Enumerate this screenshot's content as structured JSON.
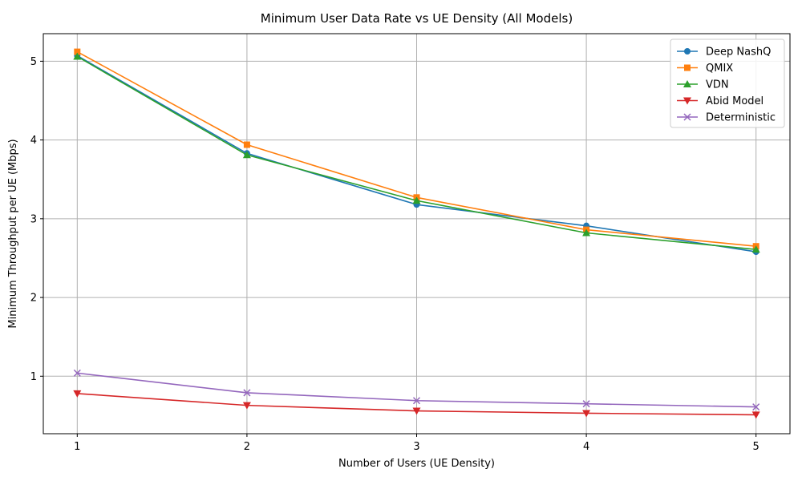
{
  "chart_data": {
    "type": "line",
    "title": "Minimum User Data Rate vs UE Density (All Models)",
    "xlabel": "Number of Users (UE Density)",
    "ylabel": "Minimum Throughput per UE (Mbps)",
    "x": [
      1,
      2,
      3,
      4,
      5
    ],
    "x_ticks": [
      "1",
      "2",
      "3",
      "4",
      "5"
    ],
    "y_ticks": [
      "1",
      "2",
      "3",
      "4",
      "5"
    ],
    "xlim": [
      0.8,
      5.2
    ],
    "ylim": [
      0.27,
      5.35
    ],
    "grid": true,
    "legend_position": "top-right",
    "series": [
      {
        "name": "Deep NashQ",
        "values": [
          5.07,
          3.83,
          3.18,
          2.91,
          2.58
        ],
        "color": "#1f77b4",
        "marker": "circle"
      },
      {
        "name": "QMIX",
        "values": [
          5.12,
          3.94,
          3.27,
          2.86,
          2.65
        ],
        "color": "#ff7f0e",
        "marker": "square"
      },
      {
        "name": "VDN",
        "values": [
          5.06,
          3.81,
          3.23,
          2.82,
          2.61
        ],
        "color": "#2ca02c",
        "marker": "triangle-up"
      },
      {
        "name": "Abid Model",
        "values": [
          0.78,
          0.63,
          0.56,
          0.53,
          0.51
        ],
        "color": "#d62728",
        "marker": "triangle-down"
      },
      {
        "name": "Deterministic",
        "values": [
          1.04,
          0.79,
          0.69,
          0.65,
          0.61
        ],
        "color": "#9467bd",
        "marker": "x"
      }
    ]
  }
}
